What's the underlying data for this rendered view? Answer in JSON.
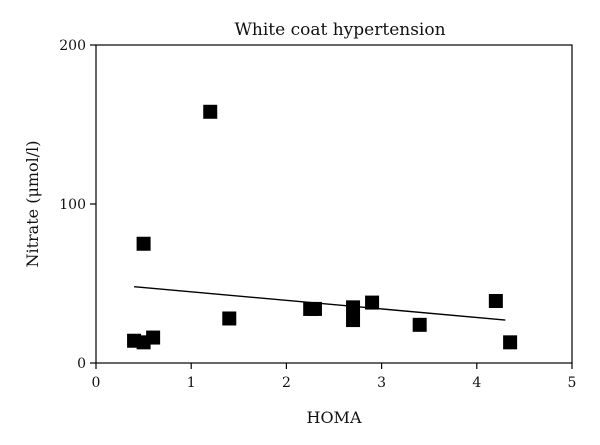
{
  "chart_data": {
    "type": "scatter",
    "title": "White coat hypertension",
    "xlabel": "HOMA",
    "ylabel": "Nitrate (μmol/l)",
    "xlim": [
      0,
      5
    ],
    "ylim": [
      0,
      200
    ],
    "xticks": [
      0,
      1,
      2,
      3,
      4,
      5
    ],
    "yticks": [
      0,
      100,
      200
    ],
    "grid": false,
    "marker": "square",
    "colors": {
      "marker": "#000000",
      "axis": "#000000",
      "trend": "#000000"
    },
    "points": [
      {
        "x": 0.4,
        "y": 14
      },
      {
        "x": 0.5,
        "y": 13
      },
      {
        "x": 0.5,
        "y": 75
      },
      {
        "x": 0.6,
        "y": 16
      },
      {
        "x": 1.2,
        "y": 158
      },
      {
        "x": 1.4,
        "y": 28
      },
      {
        "x": 2.25,
        "y": 34
      },
      {
        "x": 2.3,
        "y": 34
      },
      {
        "x": 2.7,
        "y": 27
      },
      {
        "x": 2.7,
        "y": 35
      },
      {
        "x": 2.9,
        "y": 38
      },
      {
        "x": 3.4,
        "y": 24
      },
      {
        "x": 4.2,
        "y": 39
      },
      {
        "x": 4.35,
        "y": 13
      }
    ],
    "trend_line": {
      "x": [
        0.4,
        4.3
      ],
      "y": [
        48,
        27
      ]
    }
  }
}
